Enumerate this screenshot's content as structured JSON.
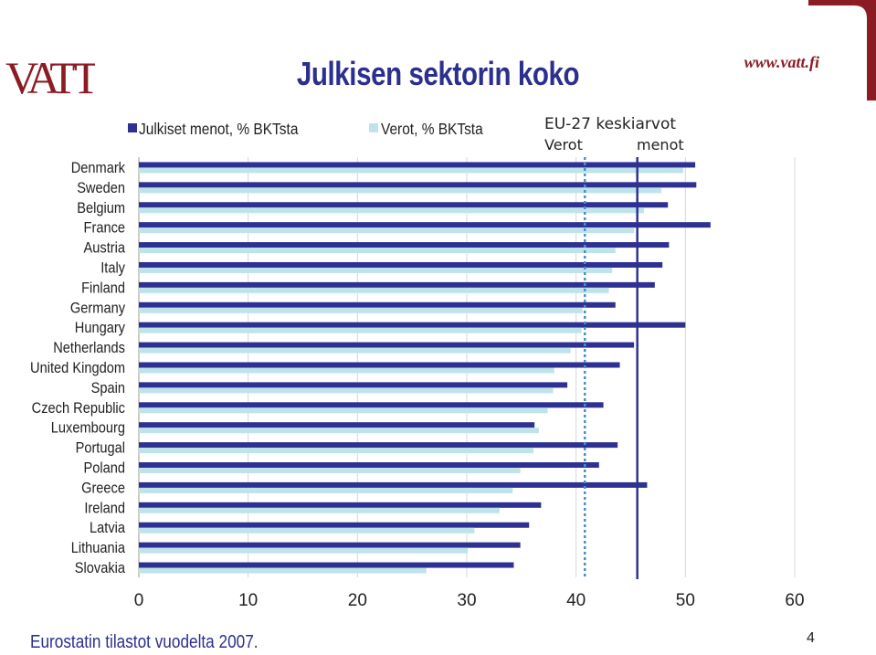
{
  "header": {
    "logo_text": "VATT",
    "title": "Julkisen sektorin koko",
    "site": "www.vatt.fi"
  },
  "footer": {
    "source": "Eurostatin tilastot vuodelta 2007.",
    "page": "4"
  },
  "colors": {
    "spending": "#2e3192",
    "taxes": "#bfe3e8",
    "avg_taxes_line": "#4a90c8",
    "avg_spending_line": "#2e3192",
    "brand_red": "#8c1c24"
  },
  "chart_data": {
    "type": "bar",
    "orientation": "horizontal",
    "categories": [
      "Denmark",
      "Sweden",
      "Belgium",
      "France",
      "Austria",
      "Italy",
      "Finland",
      "Germany",
      "Hungary",
      "Netherlands",
      "United Kingdom",
      "Spain",
      "Czech Republic",
      "Luxembourg",
      "Portugal",
      "Poland",
      "Greece",
      "Ireland",
      "Latvia",
      "Lithuania",
      "Slovakia"
    ],
    "series": [
      {
        "name": "Julkiset menot, % BKTsta",
        "values": [
          50.9,
          51.0,
          48.4,
          52.3,
          48.5,
          47.9,
          47.2,
          43.6,
          50.0,
          45.3,
          44.0,
          39.2,
          42.5,
          36.2,
          43.8,
          42.1,
          46.5,
          36.8,
          35.7,
          34.9,
          34.3
        ]
      },
      {
        "name": "Verot, % BKTsta",
        "values": [
          49.8,
          47.8,
          46.2,
          45.3,
          43.6,
          43.3,
          43.0,
          40.6,
          40.5,
          39.5,
          38.0,
          37.9,
          37.4,
          36.6,
          36.1,
          34.9,
          34.2,
          33.0,
          30.7,
          30.1,
          26.3
        ]
      }
    ],
    "xlim": [
      0,
      60
    ],
    "xticks": [
      0,
      10,
      20,
      30,
      40,
      50,
      60
    ],
    "grid": "vertical",
    "legend_position": "top",
    "eu_average": {
      "label": "EU-27 keskiarvot",
      "taxes_label": "Verot",
      "taxes_value": 40.8,
      "spending_label": "menot",
      "spending_value": 45.6
    }
  }
}
